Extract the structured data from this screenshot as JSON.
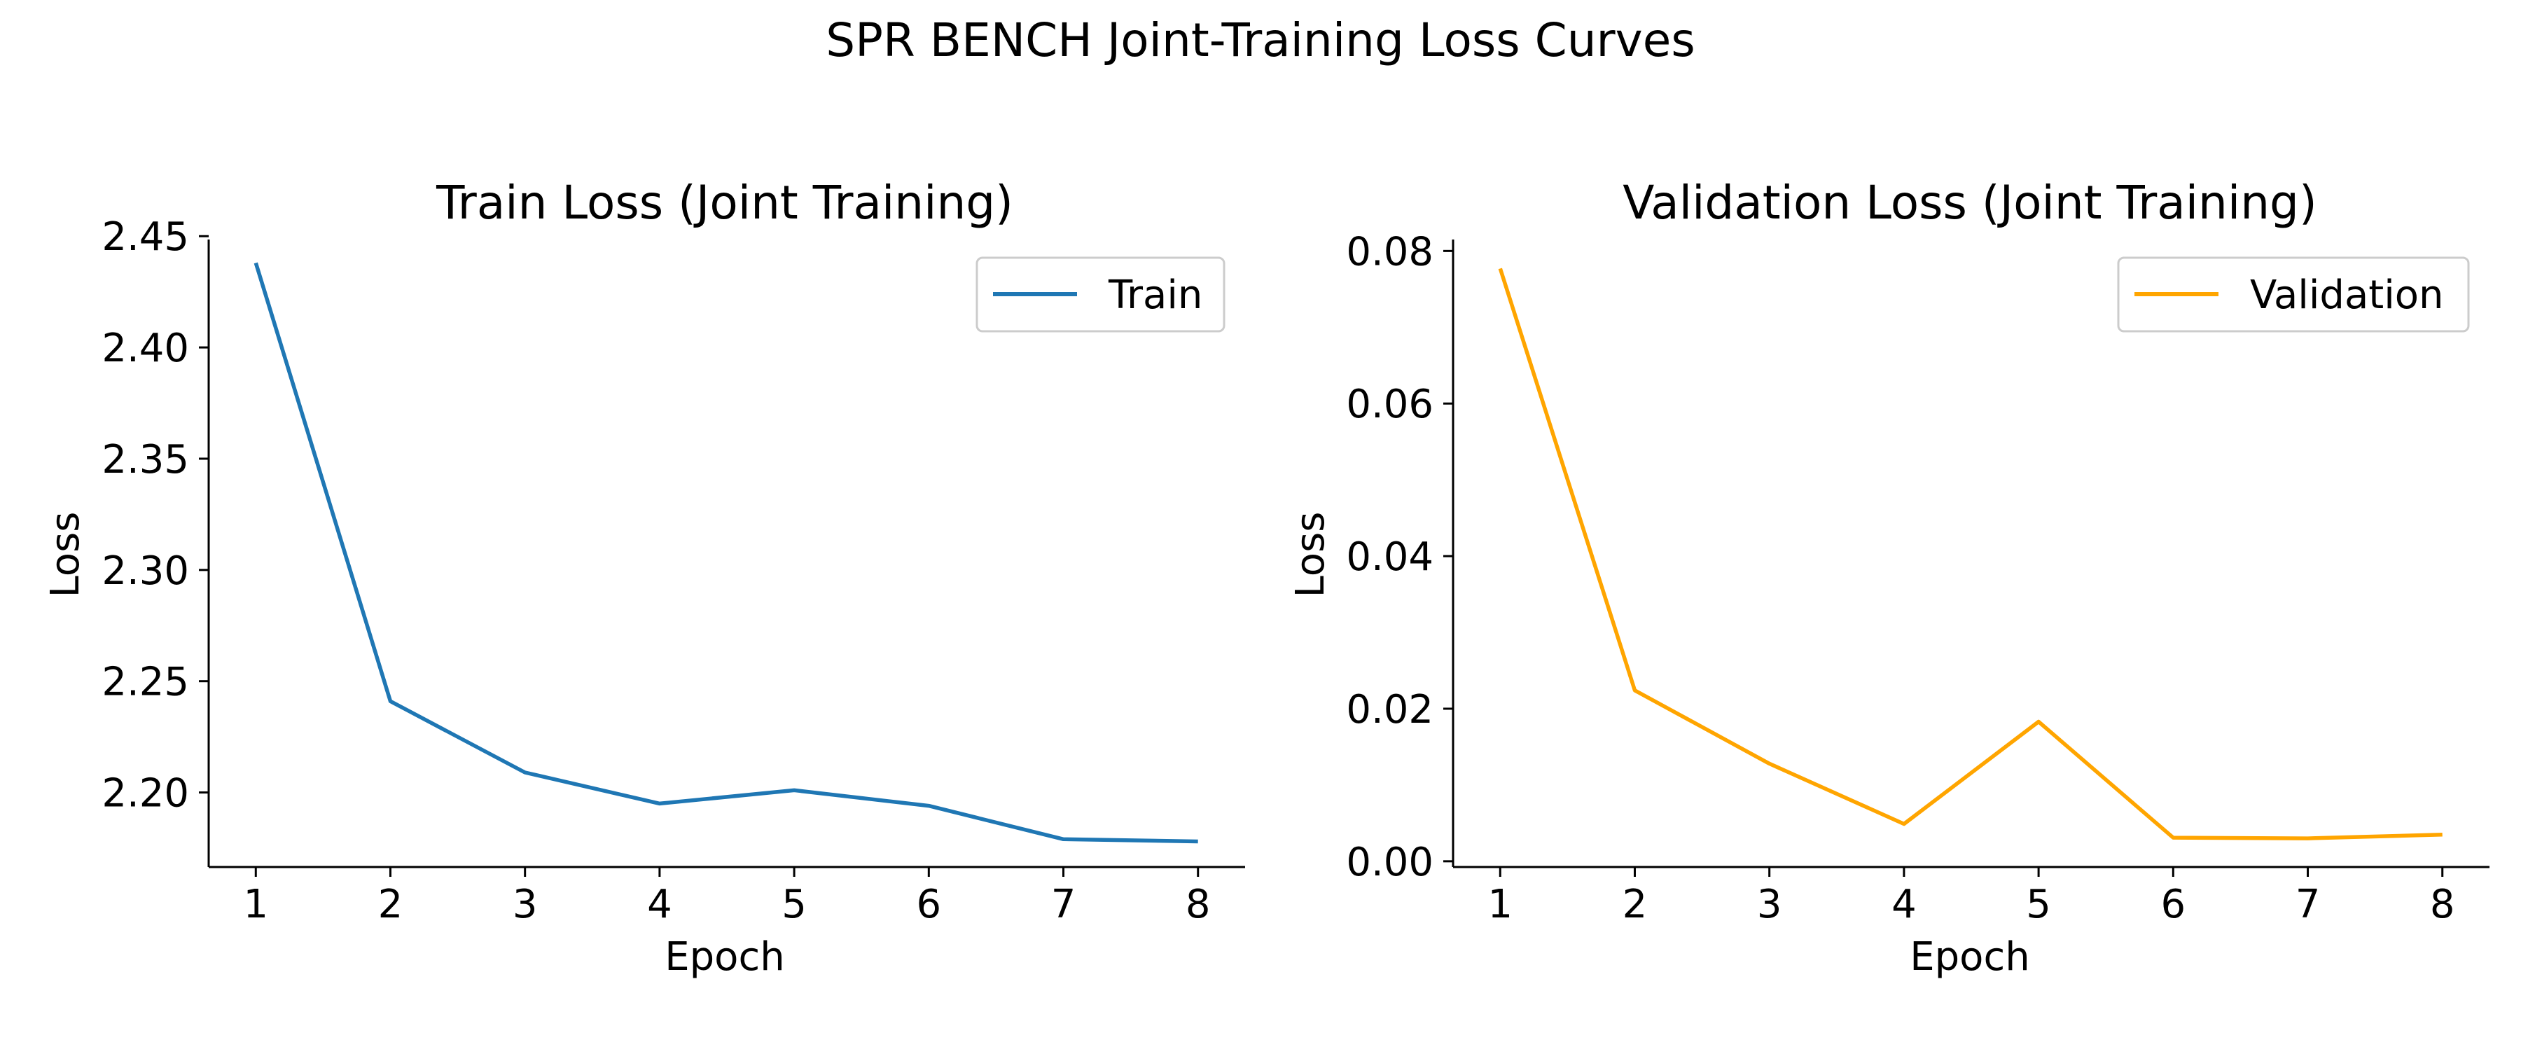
{
  "figure": {
    "title": "SPR BENCH Joint-Training Loss Curves"
  },
  "colors": {
    "train": "#1f77b4",
    "validation": "#ffa500",
    "axis": "#000000",
    "legend_border": "#cccccc"
  },
  "chart_data": [
    {
      "type": "line",
      "title": "Train Loss (Joint Training)",
      "xlabel": "Epoch",
      "ylabel": "Loss",
      "x": [
        1,
        2,
        3,
        4,
        5,
        6,
        7,
        8
      ],
      "x_ticks": [
        "1",
        "2",
        "3",
        "4",
        "5",
        "6",
        "7",
        "8"
      ],
      "y_ticks": [
        "2.20",
        "2.25",
        "2.30",
        "2.35",
        "2.40",
        "2.45"
      ],
      "y_tick_values": [
        2.2,
        2.25,
        2.3,
        2.35,
        2.4,
        2.45
      ],
      "xlim": [
        0.65,
        8.35
      ],
      "ylim": [
        2.1665,
        2.4485
      ],
      "grid": false,
      "legend_position": "upper right",
      "series": [
        {
          "name": "Train",
          "color": "#1f77b4",
          "values": [
            2.438,
            2.241,
            2.209,
            2.195,
            2.201,
            2.194,
            2.179,
            2.178
          ]
        }
      ]
    },
    {
      "type": "line",
      "title": "Validation Loss (Joint Training)",
      "xlabel": "Epoch",
      "ylabel": "Loss",
      "x": [
        1,
        2,
        3,
        4,
        5,
        6,
        7,
        8
      ],
      "x_ticks": [
        "1",
        "2",
        "3",
        "4",
        "5",
        "6",
        "7",
        "8"
      ],
      "y_ticks": [
        "0.00",
        "0.02",
        "0.04",
        "0.06",
        "0.08"
      ],
      "y_tick_values": [
        0.0,
        0.02,
        0.04,
        0.06,
        0.08
      ],
      "xlim": [
        0.65,
        8.35
      ],
      "ylim": [
        -0.00075,
        0.0815
      ],
      "grid": false,
      "legend_position": "upper right",
      "series": [
        {
          "name": "Validation",
          "color": "#ffa500",
          "values": [
            0.0777,
            0.0224,
            0.0128,
            0.0049,
            0.0183,
            0.0031,
            0.003,
            0.0035
          ]
        }
      ]
    }
  ]
}
